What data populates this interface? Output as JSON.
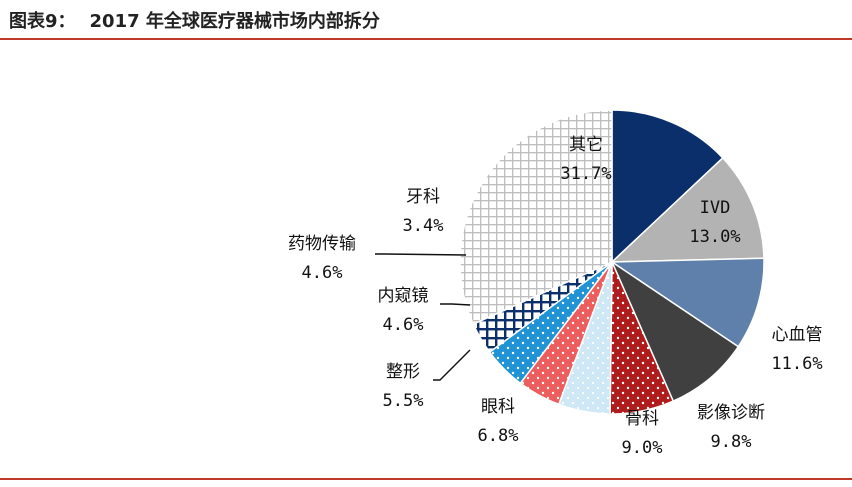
{
  "figure": {
    "label": "图表9：",
    "title": "2017 年全球医疗器械市场内部拆分"
  },
  "chart_data": {
    "type": "pie",
    "title": "2017 年全球医疗器械市场内部拆分",
    "slices": [
      {
        "label": "IVD",
        "value": 13.0,
        "value_text": "13.0%",
        "color": "#0b2f6b"
      },
      {
        "label": "心血管",
        "value": 11.6,
        "value_text": "11.6%",
        "color": "#b3b3b3"
      },
      {
        "label": "影像诊断",
        "value": 9.8,
        "value_text": "9.8%",
        "color": "#5f80aa"
      },
      {
        "label": "骨科",
        "value": 9.0,
        "value_text": "9.0%",
        "color": "#404040",
        "label_color": "#e02020"
      },
      {
        "label": "眼科",
        "value": 6.8,
        "value_text": "6.8%",
        "color": "#b01c1c",
        "pattern": "dots"
      },
      {
        "label": "整形",
        "value": 5.5,
        "value_text": "5.5%",
        "color": "#cfe8f6",
        "pattern": "dots"
      },
      {
        "label": "内窥镜",
        "value": 4.6,
        "value_text": "4.6%",
        "color": "#ee5d5d",
        "pattern": "dots"
      },
      {
        "label": "药物传输",
        "value": 4.6,
        "value_text": "4.6%",
        "color": "#1f93d6",
        "pattern": "dots"
      },
      {
        "label": "牙科",
        "value": 3.4,
        "value_text": "3.4%",
        "color": "#0b2f6b",
        "pattern": "grid"
      },
      {
        "label": "其它",
        "value": 31.7,
        "value_text": "31.7%",
        "color": "#d6d6d6",
        "pattern": "lattice"
      }
    ],
    "start_angle_deg": 0,
    "direction": "clockwise"
  }
}
